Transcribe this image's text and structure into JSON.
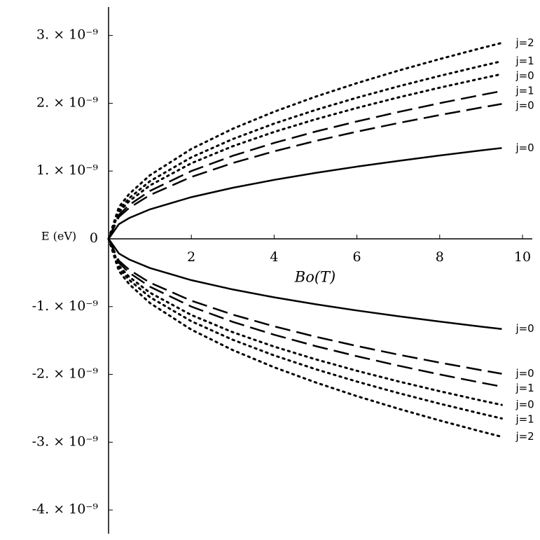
{
  "chart_data": {
    "type": "line",
    "x_label": "Bo(T)",
    "y_label": "E (eV)",
    "x": [
      0,
      0.25,
      0.5,
      1,
      2,
      3,
      4,
      5,
      6,
      7,
      8,
      9,
      9.5
    ],
    "xlim": [
      0,
      10
    ],
    "xticks": [
      2,
      4,
      6,
      8,
      10
    ],
    "ylim": [
      -4.35e-09,
      3.42e-09
    ],
    "yticks": [
      {
        "value": 3e-09,
        "label": "3. × 10⁻⁹"
      },
      {
        "value": 2e-09,
        "label": "2. × 10⁻⁹"
      },
      {
        "value": 1e-09,
        "label": "1. × 10⁻⁹"
      },
      0,
      {
        "value": -1e-09,
        "label": "-1. × 10⁻⁹"
      },
      {
        "value": -2e-09,
        "label": "-2. × 10⁻⁹"
      },
      {
        "value": -3e-09,
        "label": "-3. × 10⁻⁹"
      },
      {
        "value": -4e-09,
        "label": "-4. × 10⁻⁹"
      }
    ],
    "series": [
      {
        "name": "j=2",
        "color": "#000000",
        "dash": "dotted",
        "values": [
          0,
          4.69e-10,
          6.63e-10,
          9.38e-10,
          1.326e-09,
          1.624e-09,
          1.875e-09,
          2.097e-09,
          2.297e-09,
          2.481e-09,
          2.652e-09,
          2.813e-09,
          2.89e-09
        ]
      },
      {
        "name": "j=1",
        "color": "#000000",
        "dash": "dotted",
        "values": [
          0,
          4.25e-10,
          6.01e-10,
          8.5e-10,
          1.202e-09,
          1.472e-09,
          1.7e-09,
          1.901e-09,
          2.082e-09,
          2.249e-09,
          2.404e-09,
          2.55e-09,
          2.62e-09
        ]
      },
      {
        "name": "j=0",
        "color": "#000000",
        "dash": "dotted",
        "values": [
          0,
          3.94e-10,
          5.57e-10,
          7.88e-10,
          1.115e-09,
          1.366e-09,
          1.577e-09,
          1.763e-09,
          1.931e-09,
          2.086e-09,
          2.23e-09,
          2.365e-09,
          2.43e-09
        ]
      },
      {
        "name": "j=1",
        "color": "#000000",
        "dash": "dashed",
        "values": [
          0,
          3.54e-10,
          5e-10,
          7.07e-10,
          1e-09,
          1.225e-09,
          1.415e-09,
          1.582e-09,
          1.732e-09,
          1.871e-09,
          2.001e-09,
          2.122e-09,
          2.18e-09
        ]
      },
      {
        "name": "j=0",
        "color": "#000000",
        "dash": "dashed",
        "values": [
          0,
          3.23e-10,
          4.57e-10,
          6.46e-10,
          9.13e-10,
          1.118e-09,
          1.291e-09,
          1.444e-09,
          1.581e-09,
          1.708e-09,
          1.826e-09,
          1.937e-09,
          1.99e-09
        ]
      },
      {
        "name": "j=0",
        "color": "#000000",
        "dash": "solid",
        "values": [
          0,
          2.17e-10,
          3.07e-10,
          4.35e-10,
          6.15e-10,
          7.53e-10,
          8.7e-10,
          9.72e-10,
          1.065e-09,
          1.15e-09,
          1.23e-09,
          1.304e-09,
          1.34e-09
        ]
      },
      {
        "name": "j=0",
        "color": "#000000",
        "dash": "solid",
        "values": [
          0,
          -2.16e-10,
          -3.05e-10,
          -4.31e-10,
          -6.1e-10,
          -7.47e-10,
          -8.63e-10,
          -9.65e-10,
          -1.057e-09,
          -1.142e-09,
          -1.221e-09,
          -1.295e-09,
          -1.33e-09
        ]
      },
      {
        "name": "j=0",
        "color": "#000000",
        "dash": "dashed",
        "values": [
          0,
          -3.23e-10,
          -4.57e-10,
          -6.46e-10,
          -9.13e-10,
          -1.118e-09,
          -1.291e-09,
          -1.444e-09,
          -1.581e-09,
          -1.708e-09,
          -1.826e-09,
          -1.937e-09,
          -1.99e-09
        ]
      },
      {
        "name": "j=1",
        "color": "#000000",
        "dash": "dashed",
        "values": [
          0,
          -3.54e-10,
          -5e-10,
          -7.07e-10,
          -1e-09,
          -1.225e-09,
          -1.415e-09,
          -1.582e-09,
          -1.732e-09,
          -1.871e-09,
          -2.001e-09,
          -2.122e-09,
          -2.18e-09
        ]
      },
      {
        "name": "j=0",
        "color": "#000000",
        "dash": "dotted",
        "values": [
          0,
          -3.97e-10,
          -5.62e-10,
          -7.95e-10,
          -1.124e-09,
          -1.377e-09,
          -1.59e-09,
          -1.777e-09,
          -1.947e-09,
          -2.103e-09,
          -2.248e-09,
          -2.385e-09,
          -2.45e-09
        ]
      },
      {
        "name": "j=1",
        "color": "#000000",
        "dash": "dotted",
        "values": [
          0,
          -4.3e-10,
          -6.08e-10,
          -8.6e-10,
          -1.216e-09,
          -1.489e-09,
          -1.72e-09,
          -1.923e-09,
          -2.106e-09,
          -2.275e-09,
          -2.432e-09,
          -2.579e-09,
          -2.65e-09
        ]
      },
      {
        "name": "j=2",
        "color": "#000000",
        "dash": "dotted",
        "values": [
          0,
          -4.74e-10,
          -6.7e-10,
          -9.47e-10,
          -1.34e-09,
          -1.641e-09,
          -1.895e-09,
          -2.118e-09,
          -2.321e-09,
          -2.506e-09,
          -2.68e-09,
          -2.842e-09,
          -2.92e-09
        ]
      }
    ]
  }
}
